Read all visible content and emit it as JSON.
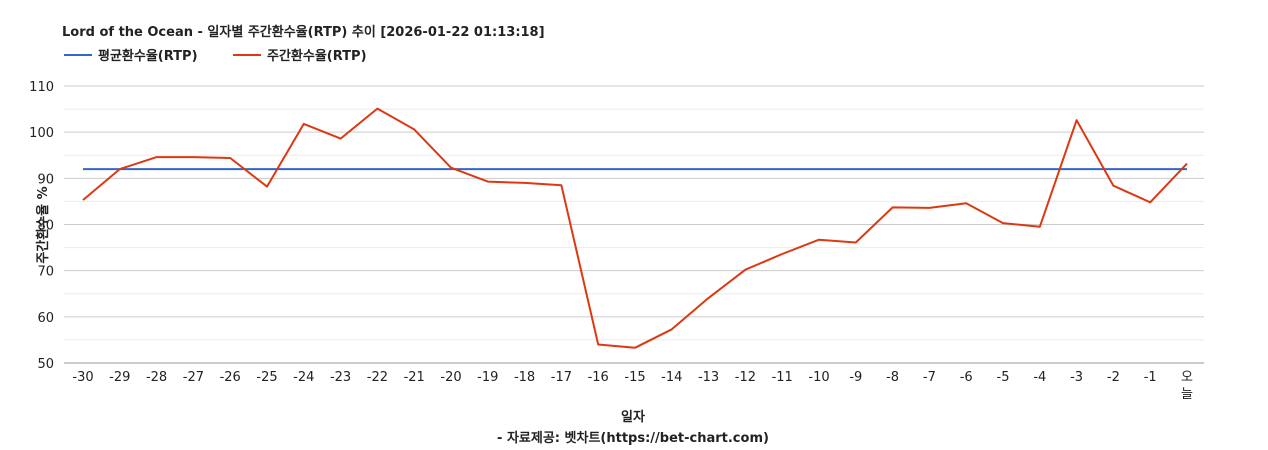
{
  "chart_data": {
    "type": "line",
    "title": "Lord of the Ocean - 일자별 주간환수율(RTP) 추이 [2026-01-22 01:13:18]",
    "xlabel": "일자",
    "ylabel": "주간환수율 %",
    "caption": "- 자료제공: 벳차트(https://bet-chart.com)",
    "legend_position": "top-left",
    "grid": true,
    "ylim": [
      50,
      110
    ],
    "yticks": [
      50,
      60,
      70,
      80,
      90,
      100,
      110
    ],
    "categories": [
      "-30",
      "-29",
      "-28",
      "-27",
      "-26",
      "-25",
      "-24",
      "-23",
      "-22",
      "-21",
      "-20",
      "-19",
      "-18",
      "-17",
      "-16",
      "-15",
      "-14",
      "-13",
      "-12",
      "-11",
      "-10",
      "-9",
      "-8",
      "-7",
      "-6",
      "-5",
      "-4",
      "-3",
      "-2",
      "-1",
      "오늘"
    ],
    "series": [
      {
        "name": "평균환수율(RTP)",
        "color": "#3366cc",
        "values": [
          92,
          92,
          92,
          92,
          92,
          92,
          92,
          92,
          92,
          92,
          92,
          92,
          92,
          92,
          92,
          92,
          92,
          92,
          92,
          92,
          92,
          92,
          92,
          92,
          92,
          92,
          92,
          92,
          92,
          92,
          92
        ]
      },
      {
        "name": "주간환수율(RTP)",
        "color": "#dc3912",
        "values": [
          85.3,
          92.0,
          94.6,
          94.6,
          94.4,
          88.2,
          101.8,
          98.6,
          105.1,
          100.6,
          92.3,
          89.3,
          89.0,
          88.5,
          54.0,
          53.3,
          57.3,
          64.1,
          70.2,
          73.6,
          76.7,
          76.1,
          83.7,
          83.6,
          84.6,
          80.3,
          79.5,
          102.6,
          88.4,
          84.8,
          93.2
        ]
      }
    ]
  }
}
